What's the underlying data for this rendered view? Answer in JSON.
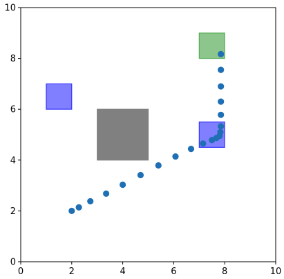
{
  "chart_data": {
    "type": "scatter",
    "title": "",
    "xlabel": "",
    "ylabel": "",
    "xlim": [
      0,
      10
    ],
    "ylim": [
      0,
      10
    ],
    "grid": false,
    "xticks": [
      "0",
      "2",
      "4",
      "6",
      "8",
      "10"
    ],
    "yticks": [
      "0",
      "2",
      "4",
      "6",
      "8",
      "10"
    ],
    "points": {
      "color": "#1f6fb4",
      "x": [
        2.0,
        2.28,
        2.73,
        3.35,
        4.0,
        4.7,
        5.4,
        6.07,
        6.68,
        7.15,
        7.5,
        7.68,
        7.8,
        7.83,
        7.85,
        7.85,
        7.85,
        7.85,
        7.85,
        7.85
      ],
      "y": [
        2.0,
        2.14,
        2.38,
        2.68,
        3.03,
        3.41,
        3.79,
        4.14,
        4.44,
        4.65,
        4.79,
        4.87,
        4.95,
        5.1,
        5.33,
        5.78,
        6.3,
        6.9,
        7.55,
        8.17
      ]
    },
    "regions": [
      {
        "id": "goal",
        "x": [
          7,
          8
        ],
        "y": [
          8,
          9
        ],
        "color": "#3fa03f",
        "opacity": 0.6
      },
      {
        "id": "obstacle-gray",
        "x": [
          3,
          5
        ],
        "y": [
          4,
          6
        ],
        "color": "#808080",
        "opacity": 1.0
      },
      {
        "id": "obstacle-blue-left",
        "x": [
          1,
          2
        ],
        "y": [
          6,
          7
        ],
        "color": "#0000ff",
        "opacity": 0.5
      },
      {
        "id": "obstacle-blue-right",
        "x": [
          7,
          8
        ],
        "y": [
          4.5,
          5.5
        ],
        "color": "#0000ff",
        "opacity": 0.5
      }
    ]
  }
}
